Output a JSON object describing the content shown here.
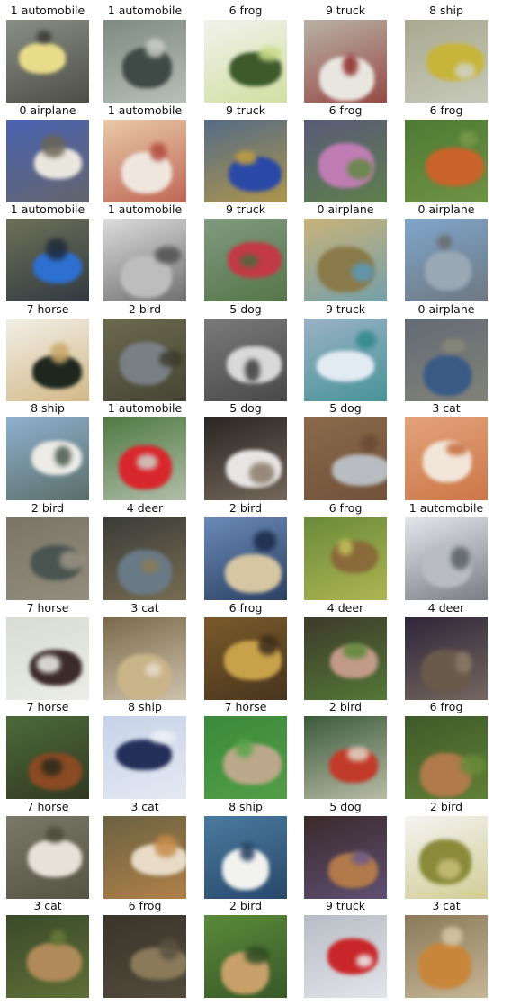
{
  "grid": {
    "rows": 10,
    "cols": 5,
    "cells": [
      {
        "label": "1 automobile",
        "bg": "#8a8f86",
        "fg": "#e8dc8a",
        "accent": "#3b3a34"
      },
      {
        "label": "1 automobile",
        "bg": "#7d8a82",
        "fg": "#3f4a46",
        "accent": "#c9cfc8"
      },
      {
        "label": "6 frog",
        "bg": "#f2f2ee",
        "fg": "#3c5a2a",
        "accent": "#c9d98a"
      },
      {
        "label": "9 truck",
        "bg": "#b8b2a6",
        "fg": "#e9e6e0",
        "accent": "#8c2b28"
      },
      {
        "label": "8 ship",
        "bg": "#a9a98f",
        "fg": "#c7b43a",
        "accent": "#cfd2c8"
      },
      {
        "label": "0 airplane",
        "bg": "#4b63b3",
        "fg": "#e9e6de",
        "accent": "#6b6656"
      },
      {
        "label": "1 automobile",
        "bg": "#e9c9a8",
        "fg": "#efe6de",
        "accent": "#b24a3d"
      },
      {
        "label": "9 truck",
        "bg": "#556b86",
        "fg": "#2b48a6",
        "accent": "#c7a23a"
      },
      {
        "label": "6 frog",
        "bg": "#5a5a78",
        "fg": "#c07db4",
        "accent": "#5e8a3e"
      },
      {
        "label": "6 frog",
        "bg": "#4d7a34",
        "fg": "#c9632a",
        "accent": "#7a9a4a"
      },
      {
        "label": "1 automobile",
        "bg": "#6e7058",
        "fg": "#2e6fd0",
        "accent": "#1f2a3a"
      },
      {
        "label": "1 automobile",
        "bg": "#dcdcdc",
        "fg": "#bdbdbd",
        "accent": "#505050"
      },
      {
        "label": "9 truck",
        "bg": "#7f9a7f",
        "fg": "#c23a44",
        "accent": "#4a6b3a"
      },
      {
        "label": "0 airplane",
        "bg": "#c8b27a",
        "fg": "#8a7a4a",
        "accent": "#5b9ab8"
      },
      {
        "label": "0 airplane",
        "bg": "#7fa6cc",
        "fg": "#9aa8b4",
        "accent": "#6a6a6a"
      },
      {
        "label": "7 horse",
        "bg": "#f2efe8",
        "fg": "#1e261e",
        "accent": "#c9a86a"
      },
      {
        "label": "2 bird",
        "bg": "#6b6a4e",
        "fg": "#7a7f86",
        "accent": "#3b3a2c"
      },
      {
        "label": "5 dog",
        "bg": "#7a7a7a",
        "fg": "#d9d9d9",
        "accent": "#3a3a3a"
      },
      {
        "label": "9 truck",
        "bg": "#9ab2c6",
        "fg": "#e2ebf2",
        "accent": "#2f8a8a"
      },
      {
        "label": "0 airplane",
        "bg": "#646a74",
        "fg": "#3a5a86",
        "accent": "#8a8a7a"
      },
      {
        "label": "8 ship",
        "bg": "#8fb0cf",
        "fg": "#ecebe6",
        "accent": "#4a5a4a"
      },
      {
        "label": "1 automobile",
        "bg": "#4f7a42",
        "fg": "#d8262d",
        "accent": "#cfd2c8"
      },
      {
        "label": "5 dog",
        "bg": "#2a2624",
        "fg": "#e8e6e4",
        "accent": "#8a7a6a"
      },
      {
        "label": "5 dog",
        "bg": "#8a6a4a",
        "fg": "#b9bcc0",
        "accent": "#6a4a34"
      },
      {
        "label": "3 cat",
        "bg": "#e3a27a",
        "fg": "#f2e6da",
        "accent": "#c46a3a"
      },
      {
        "label": "2 bird",
        "bg": "#7a7565",
        "fg": "#4a5450",
        "accent": "#9a9484"
      },
      {
        "label": "4 deer",
        "bg": "#3a3c38",
        "fg": "#6a7a86",
        "accent": "#8a7a5a"
      },
      {
        "label": "2 bird",
        "bg": "#6a8ab8",
        "fg": "#d6c6a2",
        "accent": "#1a2a4a"
      },
      {
        "label": "6 frog",
        "bg": "#6a8a3a",
        "fg": "#8a6a3a",
        "accent": "#c2c25a"
      },
      {
        "label": "1 automobile",
        "bg": "#e4e6ea",
        "fg": "#b9bdc3",
        "accent": "#5a5e66"
      },
      {
        "label": "7 horse",
        "bg": "#d8dcd4",
        "fg": "#3a2a2a",
        "accent": "#f2f2ee"
      },
      {
        "label": "3 cat",
        "bg": "#7a6a4a",
        "fg": "#c9b48a",
        "accent": "#e8dccb"
      },
      {
        "label": "6 frog",
        "bg": "#7a5a2a",
        "fg": "#c8a24a",
        "accent": "#3a2a1a"
      },
      {
        "label": "4 deer",
        "bg": "#3e3a2a",
        "fg": "#c29a8a",
        "accent": "#5a8a3a"
      },
      {
        "label": "4 deer",
        "bg": "#2e263a",
        "fg": "#6a5a4a",
        "accent": "#8a7a6a"
      },
      {
        "label": "7 horse",
        "bg": "#4c6a3a",
        "fg": "#8a4a24",
        "accent": "#2a2a1a"
      },
      {
        "label": "8 ship",
        "bg": "#c6d2e8",
        "fg": "#25305a",
        "accent": "#eef0f6"
      },
      {
        "label": "7 horse",
        "bg": "#3a8a3a",
        "fg": "#bca88a",
        "accent": "#5aa34a"
      },
      {
        "label": "2 bird",
        "bg": "#3a5a3a",
        "fg": "#c23a2a",
        "accent": "#e0d8c8"
      },
      {
        "label": "6 frog",
        "bg": "#3f5a2a",
        "fg": "#b07a4a",
        "accent": "#6a8a3a"
      },
      {
        "label": "7 horse",
        "bg": "#7a7868",
        "fg": "#e6e2d8",
        "accent": "#4a4a3a"
      },
      {
        "label": "3 cat",
        "bg": "#6b6242",
        "fg": "#e8dcc8",
        "accent": "#c48a4a"
      },
      {
        "label": "8 ship",
        "bg": "#4a7aa0",
        "fg": "#f2f2f0",
        "accent": "#1e3a5a"
      },
      {
        "label": "5 dog",
        "bg": "#3a2a2a",
        "fg": "#b07a4a",
        "accent": "#6a5a8a"
      },
      {
        "label": "2 bird",
        "bg": "#f4f4f2",
        "fg": "#8a8a3a",
        "accent": "#c8c07a"
      },
      {
        "label": "3 cat",
        "bg": "#3a4a2a",
        "fg": "#b08a5a",
        "accent": "#6a7a3a"
      },
      {
        "label": "6 frog",
        "bg": "#3a342a",
        "fg": "#8a7a5a",
        "accent": "#5a5242"
      },
      {
        "label": "2 bird",
        "bg": "#5a8a3a",
        "fg": "#c8a06a",
        "accent": "#2e4a22"
      },
      {
        "label": "9 truck",
        "bg": "#b8bcc4",
        "fg": "#c8262a",
        "accent": "#eef0f4"
      },
      {
        "label": "3 cat",
        "bg": "#8a7a5a",
        "fg": "#c8863a",
        "accent": "#d8c8a8"
      }
    ]
  }
}
